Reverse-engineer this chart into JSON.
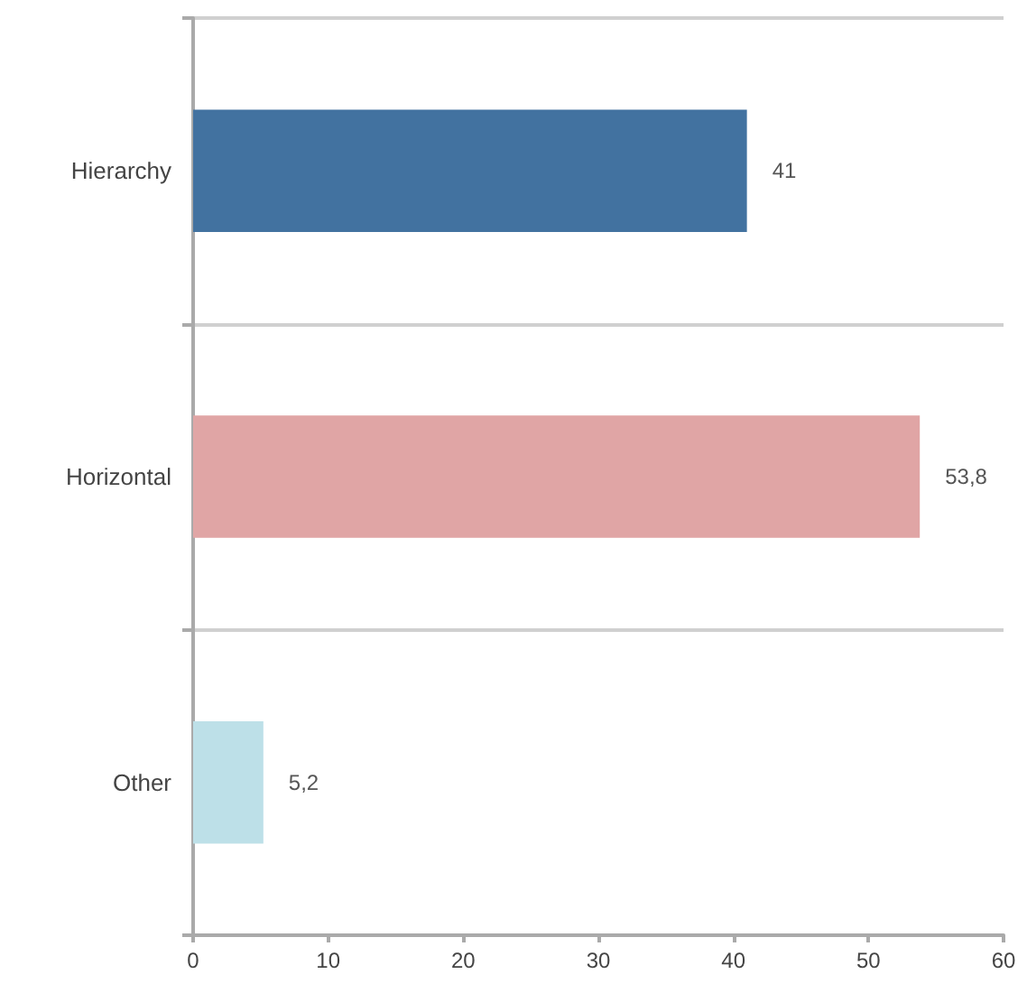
{
  "chart_data": {
    "type": "bar",
    "orientation": "horizontal",
    "categories": [
      "Hierarchy",
      "Horizontal",
      "Other"
    ],
    "values": [
      41,
      53.8,
      5.2
    ],
    "value_labels": [
      "41",
      "53,8",
      "5,2"
    ],
    "colors": [
      "#4272a0",
      "#e0a5a5",
      "#bde0e8"
    ],
    "xlim": [
      0,
      60
    ],
    "xticks": [
      0,
      10,
      20,
      30,
      40,
      50,
      60
    ],
    "grid": "y"
  }
}
